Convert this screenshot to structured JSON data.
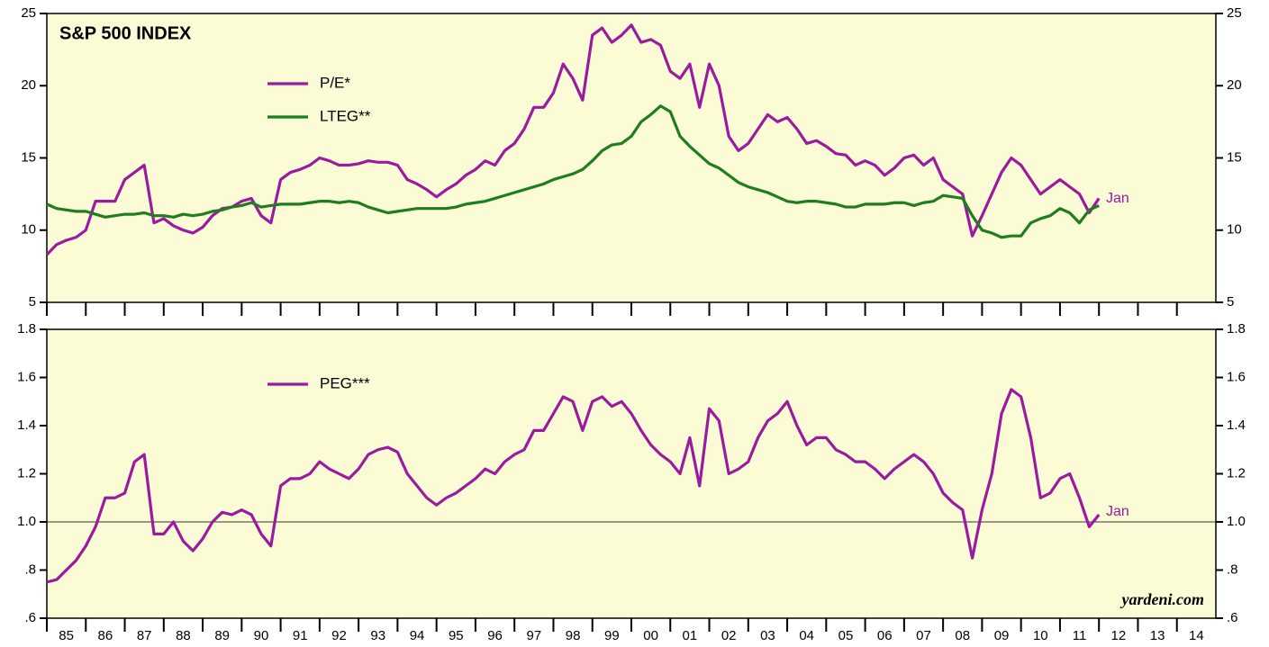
{
  "chart_data": [
    {
      "type": "line",
      "title": "S&P 500 INDEX",
      "note": "Jan",
      "x": [
        1985,
        1985.25,
        1985.5,
        1985.75,
        1986,
        1986.25,
        1986.5,
        1986.75,
        1987,
        1987.25,
        1987.5,
        1987.75,
        1988,
        1988.25,
        1988.5,
        1988.75,
        1989,
        1989.25,
        1989.5,
        1989.75,
        1990,
        1990.25,
        1990.5,
        1990.75,
        1991,
        1991.25,
        1991.5,
        1991.75,
        1992,
        1992.25,
        1992.5,
        1992.75,
        1993,
        1993.25,
        1993.5,
        1993.75,
        1994,
        1994.25,
        1994.5,
        1994.75,
        1995,
        1995.25,
        1995.5,
        1995.75,
        1996,
        1996.25,
        1996.5,
        1996.75,
        1997,
        1997.25,
        1997.5,
        1997.75,
        1998,
        1998.25,
        1998.5,
        1998.75,
        1999,
        1999.25,
        1999.5,
        1999.75,
        2000,
        2000.25,
        2000.5,
        2000.75,
        2001,
        2001.25,
        2001.5,
        2001.75,
        2002,
        2002.25,
        2002.5,
        2002.75,
        2003,
        2003.25,
        2003.5,
        2003.75,
        2004,
        2004.25,
        2004.5,
        2004.75,
        2005,
        2005.25,
        2005.5,
        2005.75,
        2006,
        2006.25,
        2006.5,
        2006.75,
        2007,
        2007.25,
        2007.5,
        2007.75,
        2008,
        2008.25,
        2008.5,
        2008.75,
        2009,
        2009.25,
        2009.5,
        2009.75,
        2010,
        2010.25,
        2010.5,
        2010.75,
        2011,
        2011.25,
        2011.5,
        2011.75,
        2012
      ],
      "series": [
        {
          "name": "P/E*",
          "color": "#9b1b9f",
          "values": [
            8.3,
            9.0,
            9.3,
            9.5,
            10.0,
            12.0,
            12.0,
            12.0,
            13.5,
            14.0,
            14.5,
            10.5,
            10.8,
            10.3,
            10.0,
            9.8,
            10.2,
            11.0,
            11.5,
            11.6,
            12.0,
            12.2,
            11.0,
            10.5,
            13.5,
            14.0,
            14.2,
            14.5,
            15.0,
            14.8,
            14.5,
            14.5,
            14.6,
            14.8,
            14.7,
            14.7,
            14.5,
            13.5,
            13.2,
            12.8,
            12.3,
            12.8,
            13.2,
            13.8,
            14.2,
            14.8,
            14.5,
            15.5,
            16.0,
            17.0,
            18.5,
            18.5,
            19.5,
            21.5,
            20.5,
            19.0,
            23.5,
            24.0,
            23.0,
            23.5,
            24.2,
            23.0,
            23.2,
            22.8,
            21.0,
            20.5,
            21.5,
            18.5,
            21.5,
            20.0,
            16.5,
            15.5,
            16.0,
            17.0,
            18.0,
            17.5,
            17.8,
            17.0,
            16.0,
            16.2,
            15.8,
            15.3,
            15.2,
            14.5,
            14.8,
            14.5,
            13.8,
            14.3,
            15.0,
            15.2,
            14.5,
            15.0,
            13.5,
            13.0,
            12.5,
            9.6,
            11.0,
            12.5,
            14.0,
            15.0,
            14.5,
            13.5,
            12.5,
            13.0,
            13.5,
            13.0,
            12.5,
            11.2,
            12.2
          ]
        },
        {
          "name": "LTEG**",
          "color": "#1f7d1f",
          "values": [
            11.8,
            11.5,
            11.4,
            11.3,
            11.3,
            11.1,
            10.9,
            11.0,
            11.1,
            11.1,
            11.2,
            11.0,
            11.0,
            10.9,
            11.1,
            11.0,
            11.1,
            11.3,
            11.4,
            11.6,
            11.7,
            11.9,
            11.6,
            11.7,
            11.8,
            11.8,
            11.8,
            11.9,
            12.0,
            12.0,
            11.9,
            12.0,
            11.9,
            11.6,
            11.4,
            11.2,
            11.3,
            11.4,
            11.5,
            11.5,
            11.5,
            11.5,
            11.6,
            11.8,
            11.9,
            12.0,
            12.2,
            12.4,
            12.6,
            12.8,
            13.0,
            13.2,
            13.5,
            13.7,
            13.9,
            14.2,
            14.8,
            15.5,
            15.9,
            16.0,
            16.5,
            17.5,
            18.0,
            18.6,
            18.2,
            16.5,
            15.8,
            15.2,
            14.6,
            14.3,
            13.8,
            13.3,
            13.0,
            12.8,
            12.6,
            12.3,
            12.0,
            11.9,
            12.0,
            12.0,
            11.9,
            11.8,
            11.6,
            11.6,
            11.8,
            11.8,
            11.8,
            11.9,
            11.9,
            11.7,
            11.9,
            12.0,
            12.4,
            12.3,
            12.2,
            11.0,
            10.0,
            9.8,
            9.5,
            9.6,
            9.6,
            10.5,
            10.8,
            11.0,
            11.5,
            11.2,
            10.5,
            11.4,
            11.7
          ]
        }
      ],
      "xlim": [
        1985,
        2015
      ],
      "ylim": [
        5,
        25
      ],
      "yticks": [
        5,
        10,
        15,
        20,
        25
      ],
      "legend": "upper left"
    },
    {
      "type": "line",
      "note": "Jan",
      "source": "yardeni.com",
      "x": [
        1985,
        1985.25,
        1985.5,
        1985.75,
        1986,
        1986.25,
        1986.5,
        1986.75,
        1987,
        1987.25,
        1987.5,
        1987.75,
        1988,
        1988.25,
        1988.5,
        1988.75,
        1989,
        1989.25,
        1989.5,
        1989.75,
        1990,
        1990.25,
        1990.5,
        1990.75,
        1991,
        1991.25,
        1991.5,
        1991.75,
        1992,
        1992.25,
        1992.5,
        1992.75,
        1993,
        1993.25,
        1993.5,
        1993.75,
        1994,
        1994.25,
        1994.5,
        1994.75,
        1995,
        1995.25,
        1995.5,
        1995.75,
        1996,
        1996.25,
        1996.5,
        1996.75,
        1997,
        1997.25,
        1997.5,
        1997.75,
        1998,
        1998.25,
        1998.5,
        1998.75,
        1999,
        1999.25,
        1999.5,
        1999.75,
        2000,
        2000.25,
        2000.5,
        2000.75,
        2001,
        2001.25,
        2001.5,
        2001.75,
        2002,
        2002.25,
        2002.5,
        2002.75,
        2003,
        2003.25,
        2003.5,
        2003.75,
        2004,
        2004.25,
        2004.5,
        2004.75,
        2005,
        2005.25,
        2005.5,
        2005.75,
        2006,
        2006.25,
        2006.5,
        2006.75,
        2007,
        2007.25,
        2007.5,
        2007.75,
        2008,
        2008.25,
        2008.5,
        2008.75,
        2009,
        2009.25,
        2009.5,
        2009.75,
        2010,
        2010.25,
        2010.5,
        2010.75,
        2011,
        2011.25,
        2011.5,
        2011.75,
        2012
      ],
      "series": [
        {
          "name": "PEG***",
          "color": "#9b1b9f",
          "values": [
            0.75,
            0.76,
            0.8,
            0.84,
            0.9,
            0.98,
            1.1,
            1.1,
            1.12,
            1.25,
            1.28,
            0.95,
            0.95,
            1.0,
            0.92,
            0.88,
            0.93,
            1.0,
            1.04,
            1.03,
            1.05,
            1.03,
            0.95,
            0.9,
            1.15,
            1.18,
            1.18,
            1.2,
            1.25,
            1.22,
            1.2,
            1.18,
            1.22,
            1.28,
            1.3,
            1.31,
            1.29,
            1.2,
            1.15,
            1.1,
            1.07,
            1.1,
            1.12,
            1.15,
            1.18,
            1.22,
            1.2,
            1.25,
            1.28,
            1.3,
            1.38,
            1.38,
            1.45,
            1.52,
            1.5,
            1.38,
            1.5,
            1.52,
            1.48,
            1.5,
            1.45,
            1.38,
            1.32,
            1.28,
            1.25,
            1.2,
            1.35,
            1.15,
            1.47,
            1.42,
            1.2,
            1.22,
            1.25,
            1.35,
            1.42,
            1.45,
            1.5,
            1.4,
            1.32,
            1.35,
            1.35,
            1.3,
            1.28,
            1.25,
            1.25,
            1.22,
            1.18,
            1.22,
            1.25,
            1.28,
            1.25,
            1.2,
            1.12,
            1.08,
            1.05,
            0.85,
            1.05,
            1.2,
            1.45,
            1.55,
            1.52,
            1.35,
            1.1,
            1.12,
            1.18,
            1.2,
            1.1,
            0.98,
            1.03
          ]
        }
      ],
      "xlim": [
        1985,
        2015
      ],
      "xticks": [
        {
          "value": 1985,
          "label": "85"
        },
        {
          "value": 1986,
          "label": "86"
        },
        {
          "value": 1987,
          "label": "87"
        },
        {
          "value": 1988,
          "label": "88"
        },
        {
          "value": 1989,
          "label": "89"
        },
        {
          "value": 1990,
          "label": "90"
        },
        {
          "value": 1991,
          "label": "91"
        },
        {
          "value": 1992,
          "label": "92"
        },
        {
          "value": 1993,
          "label": "93"
        },
        {
          "value": 1994,
          "label": "94"
        },
        {
          "value": 1995,
          "label": "95"
        },
        {
          "value": 1996,
          "label": "96"
        },
        {
          "value": 1997,
          "label": "97"
        },
        {
          "value": 1998,
          "label": "98"
        },
        {
          "value": 1999,
          "label": "99"
        },
        {
          "value": 2000,
          "label": "00"
        },
        {
          "value": 2001,
          "label": "01"
        },
        {
          "value": 2002,
          "label": "02"
        },
        {
          "value": 2003,
          "label": "03"
        },
        {
          "value": 2004,
          "label": "04"
        },
        {
          "value": 2005,
          "label": "05"
        },
        {
          "value": 2006,
          "label": "06"
        },
        {
          "value": 2007,
          "label": "07"
        },
        {
          "value": 2008,
          "label": "08"
        },
        {
          "value": 2009,
          "label": "09"
        },
        {
          "value": 2010,
          "label": "10"
        },
        {
          "value": 2011,
          "label": "11"
        },
        {
          "value": 2012,
          "label": "12"
        },
        {
          "value": 2013,
          "label": "13"
        },
        {
          "value": 2014,
          "label": "14"
        }
      ],
      "ylim": [
        0.6,
        1.8
      ],
      "yticks": [
        {
          "value": 0.6,
          "label": ".6"
        },
        {
          "value": 0.8,
          "label": ".8"
        },
        {
          "value": 1,
          "label": "1.0"
        },
        1.2,
        1.4,
        1.6,
        1.8
      ],
      "refline": 1,
      "legend": "upper left"
    }
  ]
}
